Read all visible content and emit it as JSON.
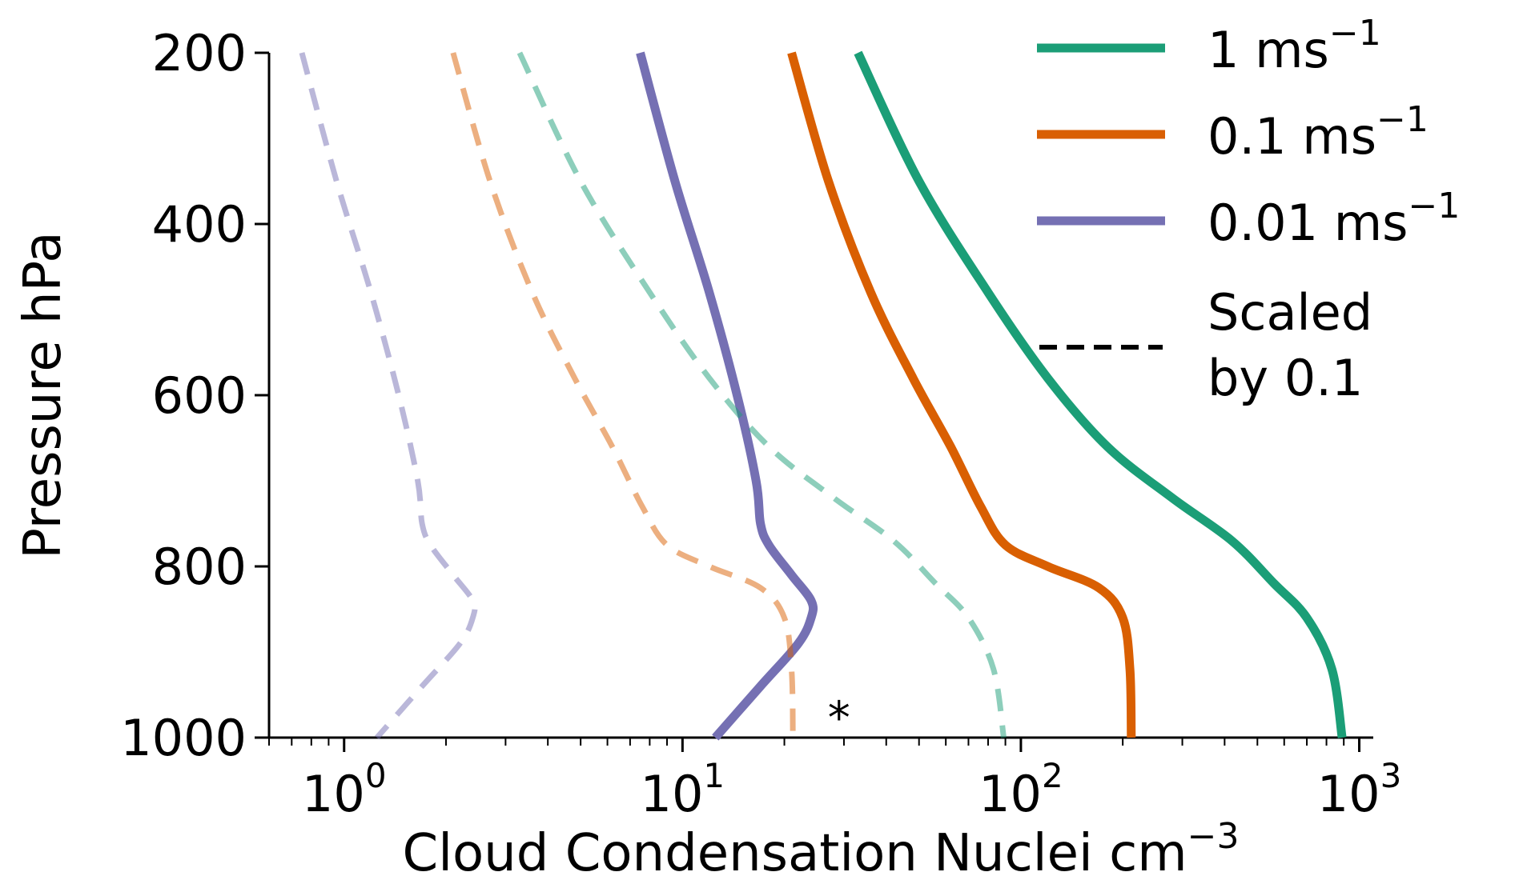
{
  "chart_data": {
    "type": "line",
    "xlabel": "Cloud Condensation Nuclei cm",
    "xlabel_sup": "−3",
    "ylabel": "Pressure hPa",
    "xscale": "log",
    "xlim": [
      0.6,
      1100
    ],
    "ylim": [
      1000,
      200
    ],
    "y_inverted": true,
    "grid": false,
    "legend_position": "top-right",
    "xticks": [
      {
        "value": 1,
        "base": "10",
        "exp": "0"
      },
      {
        "value": 10,
        "base": "10",
        "exp": "1"
      },
      {
        "value": 100,
        "base": "10",
        "exp": "2"
      },
      {
        "value": 1000,
        "base": "10",
        "exp": "3"
      }
    ],
    "yticks": [
      {
        "value": 200,
        "label": "200"
      },
      {
        "value": 400,
        "label": "400"
      },
      {
        "value": 600,
        "label": "600"
      },
      {
        "value": 800,
        "label": "800"
      },
      {
        "value": 1000,
        "label": "1000"
      }
    ],
    "annotation": {
      "text": "*",
      "x": 29,
      "y": 965
    },
    "series": [
      {
        "legend_label": "1 ms",
        "legend_sup": "−1",
        "color": "#1b9e77",
        "style": "solid",
        "opacity": 1,
        "points": [
          [
            33,
            200
          ],
          [
            50,
            350
          ],
          [
            80,
            480
          ],
          [
            120,
            580
          ],
          [
            180,
            660
          ],
          [
            280,
            720
          ],
          [
            420,
            770
          ],
          [
            560,
            820
          ],
          [
            700,
            860
          ],
          [
            830,
            920
          ],
          [
            890,
            1000
          ]
        ]
      },
      {
        "legend_label": "0.1 ms",
        "legend_sup": "−1",
        "color": "#d95f02",
        "style": "solid",
        "opacity": 1,
        "points": [
          [
            21,
            200
          ],
          [
            27,
            350
          ],
          [
            36,
            480
          ],
          [
            48,
            580
          ],
          [
            62,
            660
          ],
          [
            76,
            730
          ],
          [
            90,
            775
          ],
          [
            120,
            800
          ],
          [
            170,
            825
          ],
          [
            200,
            860
          ],
          [
            210,
            920
          ],
          [
            212,
            1000
          ]
        ]
      },
      {
        "legend_label": "0.01 ms",
        "legend_sup": "−1",
        "color": "#7570b3",
        "style": "solid",
        "opacity": 1,
        "points": [
          [
            7.5,
            200
          ],
          [
            9.5,
            350
          ],
          [
            12,
            480
          ],
          [
            14.5,
            600
          ],
          [
            16.5,
            700
          ],
          [
            17,
            750
          ],
          [
            18,
            775
          ],
          [
            21,
            810
          ],
          [
            24,
            840
          ],
          [
            24,
            860
          ],
          [
            22,
            890
          ],
          [
            17,
            940
          ],
          [
            12.5,
            1000
          ]
        ]
      },
      {
        "legend_label": "Scaled by 0.1",
        "color": "#1b9e77",
        "style": "dashed",
        "opacity": 0.5,
        "points": [
          [
            3.3,
            200
          ],
          [
            5,
            350
          ],
          [
            8,
            480
          ],
          [
            12,
            580
          ],
          [
            18,
            660
          ],
          [
            28,
            720
          ],
          [
            42,
            770
          ],
          [
            56,
            820
          ],
          [
            70,
            860
          ],
          [
            83,
            920
          ],
          [
            89,
            1000
          ]
        ]
      },
      {
        "color": "#d95f02",
        "style": "dashed",
        "opacity": 0.5,
        "points": [
          [
            2.1,
            200
          ],
          [
            2.7,
            350
          ],
          [
            3.6,
            480
          ],
          [
            4.8,
            580
          ],
          [
            6.2,
            660
          ],
          [
            7.6,
            730
          ],
          [
            9,
            775
          ],
          [
            12,
            800
          ],
          [
            17,
            825
          ],
          [
            20,
            860
          ],
          [
            21,
            920
          ],
          [
            21.2,
            1000
          ]
        ]
      },
      {
        "color": "#7570b3",
        "style": "dashed",
        "opacity": 0.5,
        "points": [
          [
            0.75,
            200
          ],
          [
            0.95,
            350
          ],
          [
            1.2,
            480
          ],
          [
            1.45,
            600
          ],
          [
            1.65,
            700
          ],
          [
            1.7,
            750
          ],
          [
            1.8,
            775
          ],
          [
            2.1,
            810
          ],
          [
            2.4,
            840
          ],
          [
            2.4,
            860
          ],
          [
            2.2,
            890
          ],
          [
            1.7,
            940
          ],
          [
            1.25,
            1000
          ]
        ]
      }
    ],
    "legend": [
      {
        "label": "1 ms",
        "sup": "−1",
        "color": "#1b9e77",
        "style": "solid"
      },
      {
        "label": "0.1 ms",
        "sup": "−1",
        "color": "#d95f02",
        "style": "solid"
      },
      {
        "label": "0.01 ms",
        "sup": "−1",
        "color": "#7570b3",
        "style": "solid"
      },
      {
        "label": "Scaled",
        "label2": "by 0.1",
        "color": "#000000",
        "style": "dashed"
      }
    ]
  }
}
